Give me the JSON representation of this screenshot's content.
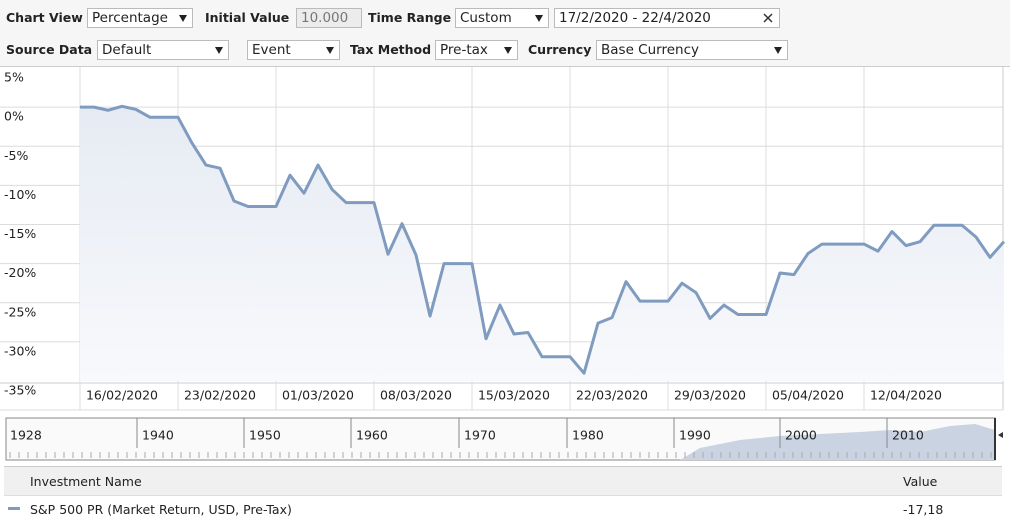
{
  "toolbar": {
    "chart_view_label": "Chart View",
    "chart_view": "Percentage",
    "initial_value_label": "Initial Value",
    "initial_value": "10.000",
    "time_range_label": "Time Range",
    "time_range": "Custom",
    "date_range": "17/2/2020 - 22/4/2020",
    "source_data_label": "Source Data",
    "source_data": "Default",
    "event": "Event",
    "tax_method_label": "Tax Method",
    "tax_method": "Pre-tax",
    "currency_label": "Currency",
    "currency": "Base Currency"
  },
  "chart_data": {
    "type": "line",
    "color": "#7f9bbf",
    "grid": true,
    "x": [
      "16/02/2020",
      "17/02/2020",
      "18/02/2020",
      "19/02/2020",
      "20/02/2020",
      "21/02/2020",
      "22/02/2020",
      "23/02/2020",
      "24/02/2020",
      "25/02/2020",
      "26/02/2020",
      "27/02/2020",
      "28/02/2020",
      "29/02/2020",
      "01/03/2020",
      "02/03/2020",
      "03/03/2020",
      "04/03/2020",
      "05/03/2020",
      "06/03/2020",
      "07/03/2020",
      "08/03/2020",
      "09/03/2020",
      "10/03/2020",
      "11/03/2020",
      "12/03/2020",
      "13/03/2020",
      "14/03/2020",
      "15/03/2020",
      "16/03/2020",
      "17/03/2020",
      "18/03/2020",
      "19/03/2020",
      "20/03/2020",
      "21/03/2020",
      "22/03/2020",
      "23/03/2020",
      "24/03/2020",
      "25/03/2020",
      "26/03/2020",
      "27/03/2020",
      "28/03/2020",
      "29/03/2020",
      "30/03/2020",
      "31/03/2020",
      "01/04/2020",
      "02/04/2020",
      "03/04/2020",
      "04/04/2020",
      "05/04/2020",
      "06/04/2020",
      "07/04/2020",
      "08/04/2020",
      "09/04/2020",
      "10/04/2020",
      "11/04/2020",
      "12/04/2020",
      "13/04/2020",
      "14/04/2020",
      "15/04/2020",
      "16/04/2020",
      "17/04/2020",
      "18/04/2020",
      "19/04/2020",
      "20/04/2020",
      "21/04/2020",
      "22/04/2020"
    ],
    "values": [
      0.0,
      0.0,
      -0.4,
      0.1,
      -0.3,
      -1.3,
      -1.3,
      -1.3,
      -4.6,
      -7.4,
      -7.8,
      -12.0,
      -12.7,
      -12.7,
      -12.7,
      -8.7,
      -11.0,
      -7.4,
      -10.5,
      -12.2,
      -12.2,
      -12.2,
      -18.8,
      -14.9,
      -18.9,
      -26.7,
      -20.0,
      -20.0,
      -20.0,
      -29.6,
      -25.3,
      -29.0,
      -28.8,
      -31.9,
      -31.9,
      -31.9,
      -34.0,
      -27.6,
      -26.9,
      -22.3,
      -24.8,
      -24.8,
      -24.8,
      -22.5,
      -23.7,
      -27.0,
      -25.3,
      -26.5,
      -26.5,
      -26.5,
      -21.2,
      -21.4,
      -18.7,
      -17.5,
      -17.5,
      -17.5,
      -17.5,
      -18.4,
      -15.9,
      -17.7,
      -17.2,
      -15.1,
      -15.1,
      -15.1,
      -16.6,
      -19.2,
      -17.18
    ],
    "xticks": [
      "16/02/2020",
      "23/02/2020",
      "01/03/2020",
      "08/03/2020",
      "15/03/2020",
      "22/03/2020",
      "29/03/2020",
      "05/04/2020",
      "12/04/2020"
    ],
    "ylim": [
      -35,
      5
    ],
    "yticks": [
      {
        "value": 5,
        "label": "5%"
      },
      {
        "value": 0,
        "label": "0%"
      },
      {
        "value": -5,
        "label": "-5%"
      },
      {
        "value": -10,
        "label": "-10%"
      },
      {
        "value": -15,
        "label": "-15%"
      },
      {
        "value": -20,
        "label": "-20%"
      },
      {
        "value": -25,
        "label": "-25%"
      },
      {
        "value": -30,
        "label": "-30%"
      },
      {
        "value": -35,
        "label": "-35%"
      }
    ]
  },
  "navigator": {
    "labels": [
      "1928",
      "1940",
      "1950",
      "1960",
      "1970",
      "1980",
      "1990",
      "2000",
      "2010"
    ]
  },
  "table": {
    "headers": [
      "Investment Name",
      "Value"
    ],
    "rows": [
      [
        "S&P 500 PR (Market Return, USD, Pre-Tax)",
        "-17,18"
      ]
    ]
  }
}
